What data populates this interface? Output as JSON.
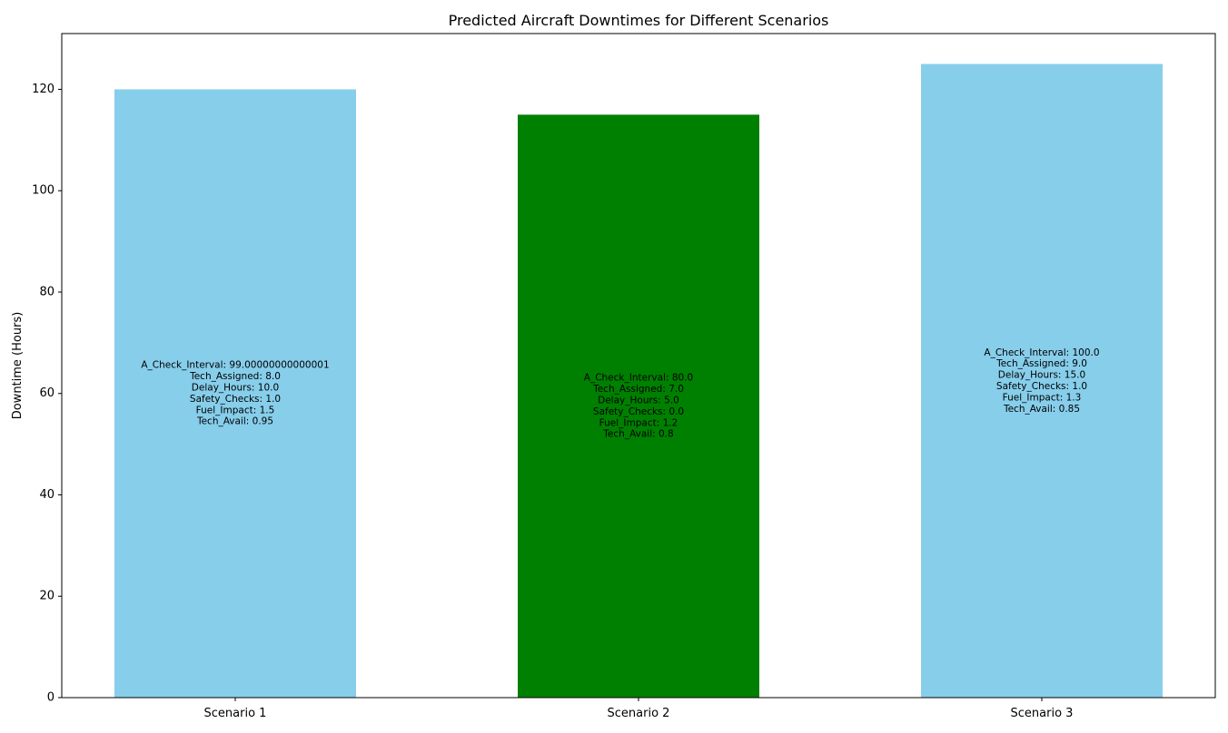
{
  "chart_data": {
    "type": "bar",
    "title": "Predicted Aircraft Downtimes for Different Scenarios",
    "xlabel": "",
    "ylabel": "Downtime (Hours)",
    "ylim": [
      0,
      131
    ],
    "yticks": [
      0,
      20,
      40,
      60,
      80,
      100,
      120
    ],
    "grid": false,
    "categories": [
      "Scenario 1",
      "Scenario 2",
      "Scenario 3"
    ],
    "values": [
      120,
      115,
      125
    ],
    "colors": [
      "#87ceeb",
      "#008000",
      "#87ceeb"
    ],
    "annotations": [
      [
        "A_Check_Interval: 99.00000000000001",
        "Tech_Assigned: 8.0",
        "Delay_Hours: 10.0",
        "Safety_Checks: 1.0",
        "Fuel_Impact: 1.5",
        "Tech_Avail: 0.95"
      ],
      [
        "A_Check_Interval: 80.0",
        "Tech_Assigned: 7.0",
        "Delay_Hours: 5.0",
        "Safety_Checks: 0.0",
        "Fuel_Impact: 1.2",
        "Tech_Avail: 0.8"
      ],
      [
        "A_Check_Interval: 100.0",
        "Tech_Assigned: 9.0",
        "Delay_Hours: 15.0",
        "Safety_Checks: 1.0",
        "Fuel_Impact: 1.3",
        "Tech_Avail: 0.85"
      ]
    ]
  }
}
